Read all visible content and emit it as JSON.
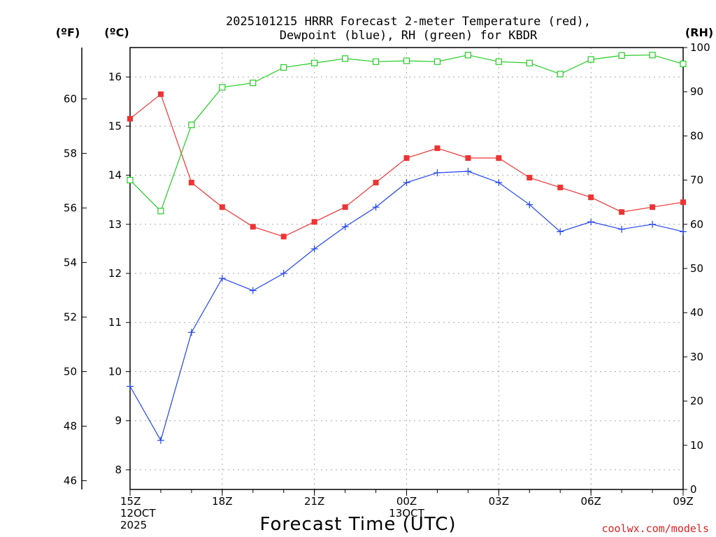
{
  "title_lines": [
    "2025101215 HRRR Forecast 2-meter Temperature (red),",
    "Dewpoint (blue), RH (green) for KBDR"
  ],
  "credit": "coolwx.com/models",
  "colors": {
    "temp": "#ee3333",
    "dewpoint": "#2244ee",
    "rh": "#22cc22",
    "credit": "#dd2222"
  },
  "chart_data": {
    "type": "line",
    "title": "2025101215 HRRR Forecast 2-meter Temperature (red), Dewpoint (blue), RH (green) for KBDR",
    "xlabel": "Forecast Time (UTC)",
    "x": [
      "15Z",
      "16Z",
      "17Z",
      "18Z",
      "19Z",
      "20Z",
      "21Z",
      "22Z",
      "23Z",
      "00Z",
      "01Z",
      "02Z",
      "03Z",
      "04Z",
      "05Z",
      "06Z",
      "07Z",
      "08Z",
      "09Z"
    ],
    "x_tick_labels": [
      {
        "index": 0,
        "lines": [
          "15Z",
          "12OCT",
          "2025"
        ]
      },
      {
        "index": 3,
        "lines": [
          "18Z"
        ]
      },
      {
        "index": 6,
        "lines": [
          "21Z"
        ]
      },
      {
        "index": 9,
        "lines": [
          "00Z",
          "13OCT"
        ]
      },
      {
        "index": 12,
        "lines": [
          "03Z"
        ]
      },
      {
        "index": 15,
        "lines": [
          "06Z"
        ]
      },
      {
        "index": 18,
        "lines": [
          "09Z"
        ]
      }
    ],
    "axes": {
      "celsius": {
        "label": "(ºC)",
        "range": [
          7.6,
          16.6
        ],
        "ticks": [
          8,
          9,
          10,
          11,
          12,
          13,
          14,
          15,
          16
        ]
      },
      "fahrenheit": {
        "label": "(ºF)",
        "range": [
          45.68,
          61.88
        ],
        "ticks": [
          46,
          48,
          50,
          52,
          54,
          56,
          58,
          60
        ]
      },
      "rh": {
        "label": "(RH)",
        "range": [
          0,
          100
        ],
        "ticks": [
          0,
          10,
          20,
          30,
          40,
          50,
          60,
          70,
          80,
          90,
          100
        ]
      }
    },
    "grid": true,
    "series": [
      {
        "key": "temp",
        "axis": "celsius",
        "marker": "filled-square",
        "values": [
          15.15,
          15.65,
          13.85,
          13.35,
          12.95,
          12.75,
          13.05,
          13.35,
          13.85,
          14.35,
          14.55,
          14.35,
          14.35,
          13.95,
          13.75,
          13.55,
          13.25,
          13.35,
          13.45
        ]
      },
      {
        "key": "dewpoint",
        "axis": "celsius",
        "marker": "plus",
        "values": [
          9.7,
          8.6,
          10.8,
          11.9,
          11.65,
          12.0,
          12.5,
          12.95,
          13.35,
          13.85,
          14.05,
          14.08,
          13.85,
          13.4,
          12.85,
          13.05,
          12.9,
          13.0,
          12.85
        ]
      },
      {
        "key": "rh",
        "axis": "rh",
        "marker": "open-square",
        "values": [
          70,
          63,
          82.5,
          91,
          92,
          95.5,
          96.5,
          97.5,
          96.8,
          97,
          96.8,
          98.3,
          96.8,
          96.5,
          94,
          97.3,
          98.2,
          98.3,
          96.3
        ]
      }
    ]
  }
}
